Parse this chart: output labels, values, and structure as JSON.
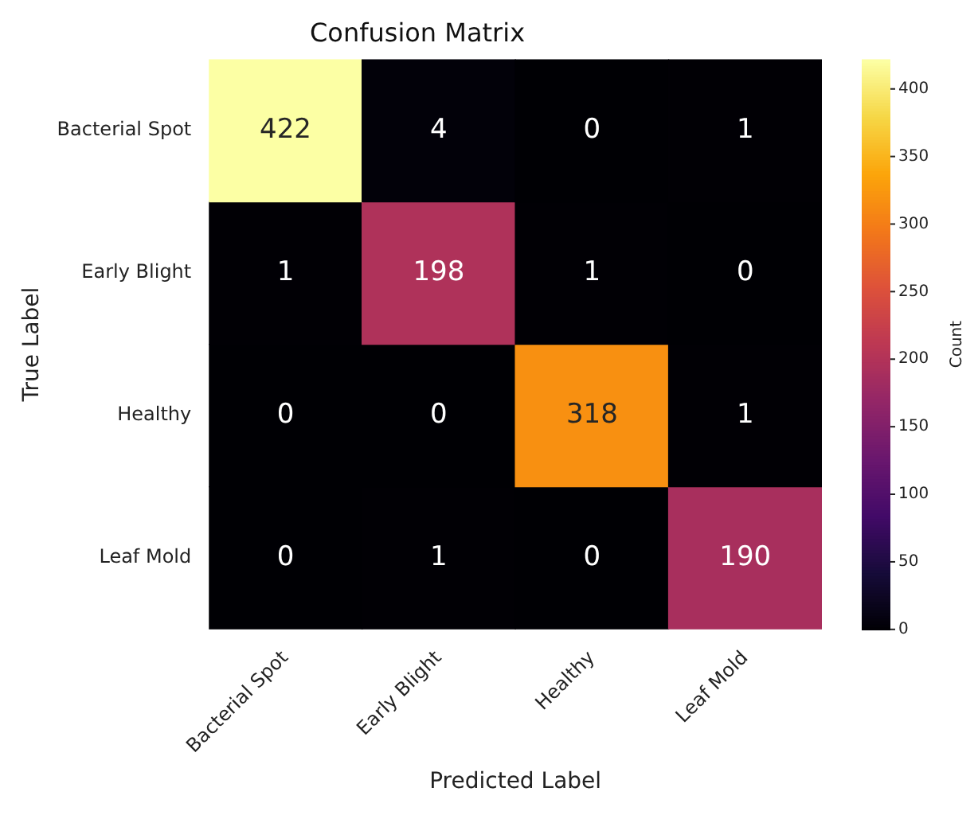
{
  "chart_data": {
    "type": "heatmap",
    "title": "Confusion Matrix",
    "xlabel": "Predicted Label",
    "ylabel": "True Label",
    "clabel": "Count",
    "categories": [
      "Bacterial Spot",
      "Early Blight",
      "Healthy",
      "Leaf Mold"
    ],
    "y_categories": [
      "Bacterial Spot",
      "Early Blight",
      "Healthy",
      "Leaf Mold"
    ],
    "cells": [
      [
        422,
        4,
        0,
        1
      ],
      [
        1,
        198,
        1,
        0
      ],
      [
        0,
        0,
        318,
        1
      ],
      [
        0,
        1,
        0,
        190
      ]
    ],
    "clim": [
      0,
      422
    ],
    "cticks": [
      0,
      50,
      100,
      150,
      200,
      250,
      300,
      350,
      400
    ],
    "data_labels": true
  }
}
